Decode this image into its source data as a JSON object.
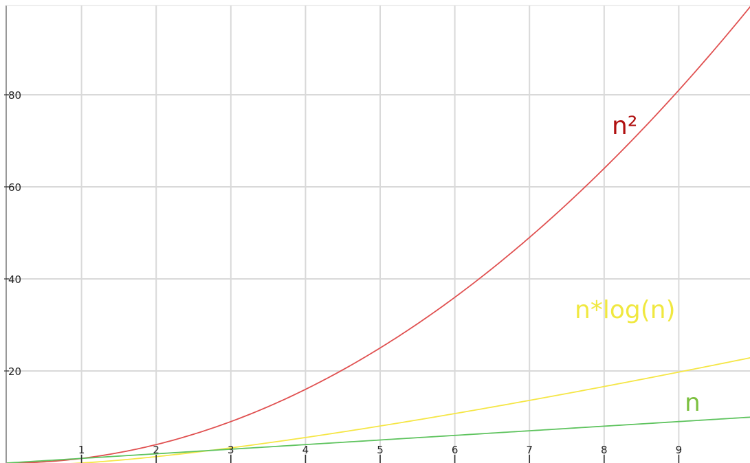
{
  "chart_data": {
    "type": "line",
    "title": "",
    "xlabel": "",
    "ylabel": "",
    "xlim": [
      0,
      10
    ],
    "ylim": [
      0,
      100
    ],
    "grid": true,
    "x_ticks": [
      "1",
      "2",
      "3",
      "4",
      "5",
      "6",
      "7",
      "8",
      "9"
    ],
    "y_ticks": [
      "20",
      "40",
      "60",
      "80"
    ],
    "x_tick_values": [
      1,
      2,
      3,
      4,
      5,
      6,
      7,
      8,
      9
    ],
    "y_tick_values": [
      20,
      40,
      60,
      80
    ],
    "x": [
      0,
      1,
      2,
      3,
      4,
      5,
      6,
      7,
      8,
      9,
      10
    ],
    "series": [
      {
        "name": "n²",
        "color": "#e05050",
        "label_color": "#b01010",
        "values": [
          0,
          1,
          4,
          9,
          16,
          25,
          36,
          49,
          64,
          81,
          100
        ]
      },
      {
        "name": "n*log(n)",
        "color": "#f5e645",
        "label_color": "#f0e840",
        "values": [
          0,
          0,
          1.4,
          3.3,
          5.5,
          8.0,
          10.8,
          13.6,
          16.6,
          19.8,
          23.0
        ]
      },
      {
        "name": "n",
        "color": "#5ec35e",
        "label_color": "#7cc040",
        "values": [
          0,
          1,
          2,
          3,
          4,
          5,
          6,
          7,
          8,
          9,
          10
        ]
      }
    ]
  }
}
